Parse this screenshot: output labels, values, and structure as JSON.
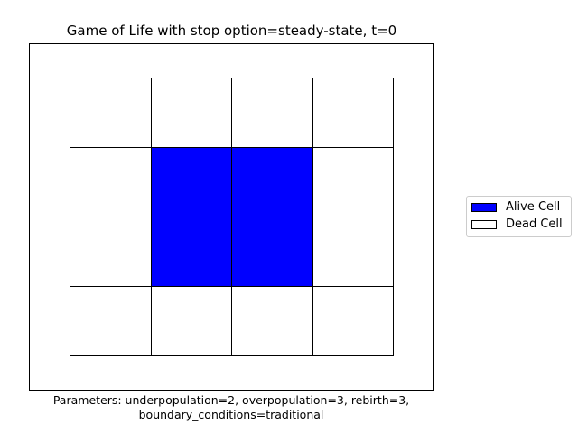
{
  "title": "Game of Life with stop option=steady-state, t=0",
  "grid": {
    "rows": 4,
    "cols": 4,
    "cells": [
      [
        0,
        0,
        0,
        0
      ],
      [
        0,
        1,
        1,
        0
      ],
      [
        0,
        1,
        1,
        0
      ],
      [
        0,
        0,
        0,
        0
      ]
    ]
  },
  "colors": {
    "alive": "#0000ff",
    "dead": "#ffffff"
  },
  "legend": {
    "alive_label": "Alive Cell",
    "dead_label": "Dead Cell"
  },
  "caption": {
    "line1": "Parameters: underpopulation=2, overpopulation=3, rebirth=3,",
    "line2": "boundary_conditions=traditional"
  }
}
